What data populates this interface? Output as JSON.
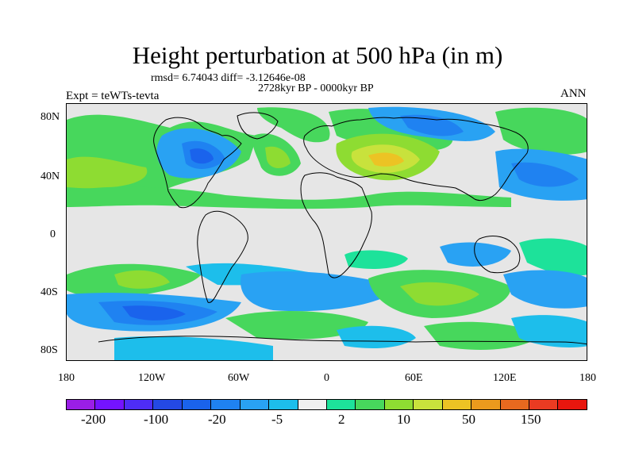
{
  "title": "Height perturbation at 500 hPa (in m)",
  "stats": "rmsd= 6.74043 diff= -3.12646e-08",
  "period": "2728kyr BP - 0000kyr BP",
  "experiment": "Expt = teWTs-tevta",
  "season": "ANN",
  "lat_labels": [
    "80N",
    "40N",
    "0",
    "40S",
    "80S"
  ],
  "lon_labels": [
    "180",
    "120W",
    "60W",
    "0",
    "60E",
    "120E",
    "180"
  ],
  "colorbar": {
    "colors": [
      "#9a1ee6",
      "#7413ff",
      "#4e2df6",
      "#2449e4",
      "#1a63ec",
      "#1f82f1",
      "#29a2f3",
      "#1dbeeb",
      "#f0f0f0",
      "#1de29a",
      "#47d75c",
      "#8edc32",
      "#c8e23c",
      "#ecc324",
      "#eb9a1d",
      "#e7691f",
      "#ea3b22",
      "#e8160e"
    ],
    "labels": [
      "-200",
      "-100",
      "-20",
      "-5",
      "2",
      "10",
      "50",
      "150"
    ]
  }
}
